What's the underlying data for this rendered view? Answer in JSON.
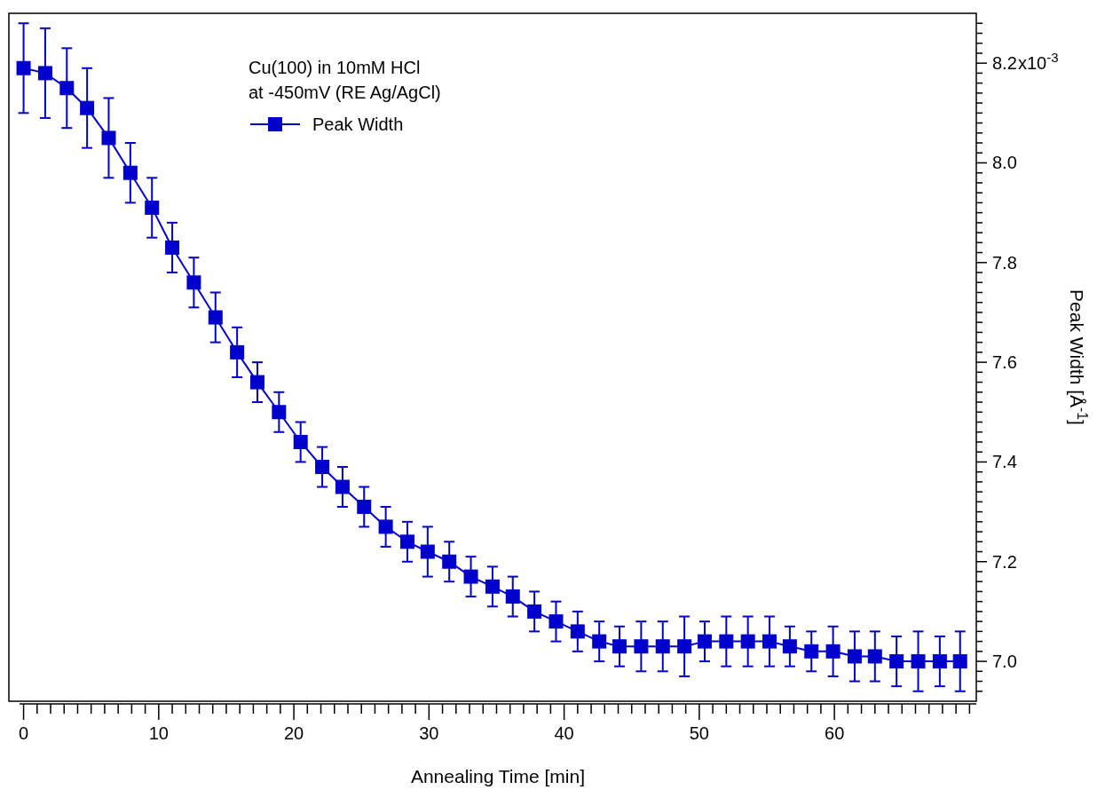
{
  "chart_data": {
    "type": "line",
    "xlabel": "Annealing Time [min]",
    "ylabel": "Peak Width [Å$^{-1}$]",
    "annotations": [
      "Cu(100) in 10mM HCl",
      "at -450mV (RE Ag/AgCl)",
      "x10$^{-3}$"
    ],
    "x": [
      0,
      1.6,
      3.2,
      4.7,
      6.3,
      7.9,
      9.5,
      11.0,
      12.6,
      14.2,
      15.8,
      17.3,
      18.9,
      20.5,
      22.1,
      23.6,
      25.2,
      26.8,
      28.4,
      29.9,
      31.5,
      33.1,
      34.7,
      36.2,
      37.8,
      39.4,
      41.0,
      42.6,
      44.1,
      45.7,
      47.3,
      48.9,
      50.4,
      52.0,
      53.6,
      55.2,
      56.7,
      58.3,
      59.9,
      61.5,
      63.0,
      64.6,
      66.2,
      67.8,
      69.3
    ],
    "series": [
      {
        "name": "Peak Width",
        "color": "#0000cc",
        "values": [
          8.19,
          8.18,
          8.15,
          8.11,
          8.05,
          7.98,
          7.91,
          7.83,
          7.76,
          7.69,
          7.62,
          7.56,
          7.5,
          7.44,
          7.39,
          7.35,
          7.31,
          7.27,
          7.24,
          7.22,
          7.2,
          7.17,
          7.15,
          7.13,
          7.1,
          7.08,
          7.06,
          7.04,
          7.03,
          7.03,
          7.03,
          7.03,
          7.04,
          7.04,
          7.04,
          7.04,
          7.03,
          7.02,
          7.02,
          7.01,
          7.01,
          7.0,
          7.0,
          7.0,
          7.0
        ],
        "errors": [
          0.09,
          0.09,
          0.08,
          0.08,
          0.08,
          0.06,
          0.06,
          0.05,
          0.05,
          0.05,
          0.05,
          0.04,
          0.04,
          0.04,
          0.04,
          0.04,
          0.04,
          0.04,
          0.04,
          0.05,
          0.04,
          0.04,
          0.04,
          0.04,
          0.04,
          0.04,
          0.04,
          0.04,
          0.04,
          0.05,
          0.05,
          0.06,
          0.04,
          0.05,
          0.05,
          0.05,
          0.04,
          0.04,
          0.05,
          0.05,
          0.05,
          0.05,
          0.06,
          0.05,
          0.06
        ]
      }
    ],
    "xlim": [
      -0.3,
      70.5
    ],
    "xticks": [
      0,
      {
        "value": 1,
        "label": null
      },
      {
        "value": 2,
        "label": null
      },
      {
        "value": 3,
        "label": null
      },
      {
        "value": 4,
        "label": null
      },
      {
        "value": 5,
        "label": null
      },
      {
        "value": 6,
        "label": null
      },
      {
        "value": 7,
        "label": null
      },
      {
        "value": 8,
        "label": null
      },
      {
        "value": 9,
        "label": null
      },
      10,
      {
        "value": 11,
        "label": null
      },
      {
        "value": 12,
        "label": null
      },
      {
        "value": 13,
        "label": null
      },
      {
        "value": 14,
        "label": null
      },
      {
        "value": 15,
        "label": null
      },
      {
        "value": 16,
        "label": null
      },
      {
        "value": 17,
        "label": null
      },
      {
        "value": 18,
        "label": null
      },
      {
        "value": 19,
        "label": null
      },
      20,
      {
        "value": 21,
        "label": null
      },
      {
        "value": 22,
        "label": null
      },
      {
        "value": 23,
        "label": null
      },
      {
        "value": 24,
        "label": null
      },
      {
        "value": 25,
        "label": null
      },
      {
        "value": 26,
        "label": null
      },
      {
        "value": 27,
        "label": null
      },
      {
        "value": 28,
        "label": null
      },
      {
        "value": 29,
        "label": null
      },
      30,
      {
        "value": 31,
        "label": null
      },
      {
        "value": 32,
        "label": null
      },
      {
        "value": 33,
        "label": null
      },
      {
        "value": 34,
        "label": null
      },
      {
        "value": 35,
        "label": null
      },
      {
        "value": 36,
        "label": null
      },
      {
        "value": 37,
        "label": null
      },
      {
        "value": 38,
        "label": null
      },
      {
        "value": 39,
        "label": null
      },
      40,
      {
        "value": 41,
        "label": null
      },
      {
        "value": 42,
        "label": null
      },
      {
        "value": 43,
        "label": null
      },
      {
        "value": 44,
        "label": null
      },
      {
        "value": 45,
        "label": null
      },
      {
        "value": 46,
        "label": null
      },
      {
        "value": 47,
        "label": null
      },
      {
        "value": 48,
        "label": null
      },
      {
        "value": 49,
        "label": null
      },
      50,
      {
        "value": 51,
        "label": null
      },
      {
        "value": 52,
        "label": null
      },
      {
        "value": 53,
        "label": null
      },
      {
        "value": 54,
        "label": null
      },
      {
        "value": 55,
        "label": null
      },
      {
        "value": 56,
        "label": null
      },
      {
        "value": 57,
        "label": null
      },
      {
        "value": 58,
        "label": null
      },
      {
        "value": 59,
        "label": null
      },
      60,
      {
        "value": 61,
        "label": null
      },
      {
        "value": 62,
        "label": null
      },
      {
        "value": 63,
        "label": null
      },
      {
        "value": 64,
        "label": null
      },
      {
        "value": 65,
        "label": null
      },
      {
        "value": 66,
        "label": null
      },
      {
        "value": 67,
        "label": null
      },
      {
        "value": 68,
        "label": null
      },
      {
        "value": 69,
        "label": null
      },
      {
        "value": 70,
        "label": null
      }
    ],
    "ylim": [
      6.92,
      8.3
    ],
    "yticks": [
      {
        "value": 6.94,
        "label": null
      },
      {
        "value": 6.96,
        "label": null
      },
      {
        "value": 6.98,
        "label": null
      },
      {
        "value": 7.0,
        "label": "7.0"
      },
      {
        "value": 7.02,
        "label": null
      },
      {
        "value": 7.04,
        "label": null
      },
      {
        "value": 7.06,
        "label": null
      },
      {
        "value": 7.08,
        "label": null
      },
      {
        "value": 7.1,
        "label": null
      },
      {
        "value": 7.12,
        "label": null
      },
      {
        "value": 7.14,
        "label": null
      },
      {
        "value": 7.16,
        "label": null
      },
      {
        "value": 7.18,
        "label": null
      },
      {
        "value": 7.2,
        "label": "7.2"
      },
      {
        "value": 7.22,
        "label": null
      },
      {
        "value": 7.24,
        "label": null
      },
      {
        "value": 7.26,
        "label": null
      },
      {
        "value": 7.28,
        "label": null
      },
      {
        "value": 7.3,
        "label": null
      },
      {
        "value": 7.32,
        "label": null
      },
      {
        "value": 7.34,
        "label": null
      },
      {
        "value": 7.36,
        "label": null
      },
      {
        "value": 7.38,
        "label": null
      },
      {
        "value": 7.4,
        "label": "7.4"
      },
      {
        "value": 7.42,
        "label": null
      },
      {
        "value": 7.44,
        "label": null
      },
      {
        "value": 7.46,
        "label": null
      },
      {
        "value": 7.48,
        "label": null
      },
      {
        "value": 7.5,
        "label": null
      },
      {
        "value": 7.52,
        "label": null
      },
      {
        "value": 7.54,
        "label": null
      },
      {
        "value": 7.56,
        "label": null
      },
      {
        "value": 7.58,
        "label": null
      },
      {
        "value": 7.6,
        "label": "7.6"
      },
      {
        "value": 7.62,
        "label": null
      },
      {
        "value": 7.64,
        "label": null
      },
      {
        "value": 7.66,
        "label": null
      },
      {
        "value": 7.68,
        "label": null
      },
      {
        "value": 7.7,
        "label": null
      },
      {
        "value": 7.72,
        "label": null
      },
      {
        "value": 7.74,
        "label": null
      },
      {
        "value": 7.76,
        "label": null
      },
      {
        "value": 7.78,
        "label": null
      },
      {
        "value": 7.8,
        "label": "7.8"
      },
      {
        "value": 7.82,
        "label": null
      },
      {
        "value": 7.84,
        "label": null
      },
      {
        "value": 7.86,
        "label": null
      },
      {
        "value": 7.88,
        "label": null
      },
      {
        "value": 7.9,
        "label": null
      },
      {
        "value": 7.92,
        "label": null
      },
      {
        "value": 7.94,
        "label": null
      },
      {
        "value": 7.96,
        "label": null
      },
      {
        "value": 7.98,
        "label": null
      },
      {
        "value": 8.0,
        "label": "8.0"
      },
      {
        "value": 8.02,
        "label": null
      },
      {
        "value": 8.04,
        "label": null
      },
      {
        "value": 8.06,
        "label": null
      },
      {
        "value": 8.08,
        "label": null
      },
      {
        "value": 8.1,
        "label": null
      },
      {
        "value": 8.12,
        "label": null
      },
      {
        "value": 8.14,
        "label": null
      },
      {
        "value": 8.16,
        "label": null
      },
      {
        "value": 8.18,
        "label": null
      },
      {
        "value": 8.2,
        "label": "8.2"
      },
      {
        "value": 8.22,
        "label": null
      },
      {
        "value": 8.24,
        "label": null
      },
      {
        "value": 8.26,
        "label": null
      },
      {
        "value": 8.28,
        "label": null
      }
    ],
    "legend": "top",
    "marker": "square",
    "line_style": "solid",
    "grid": false
  }
}
